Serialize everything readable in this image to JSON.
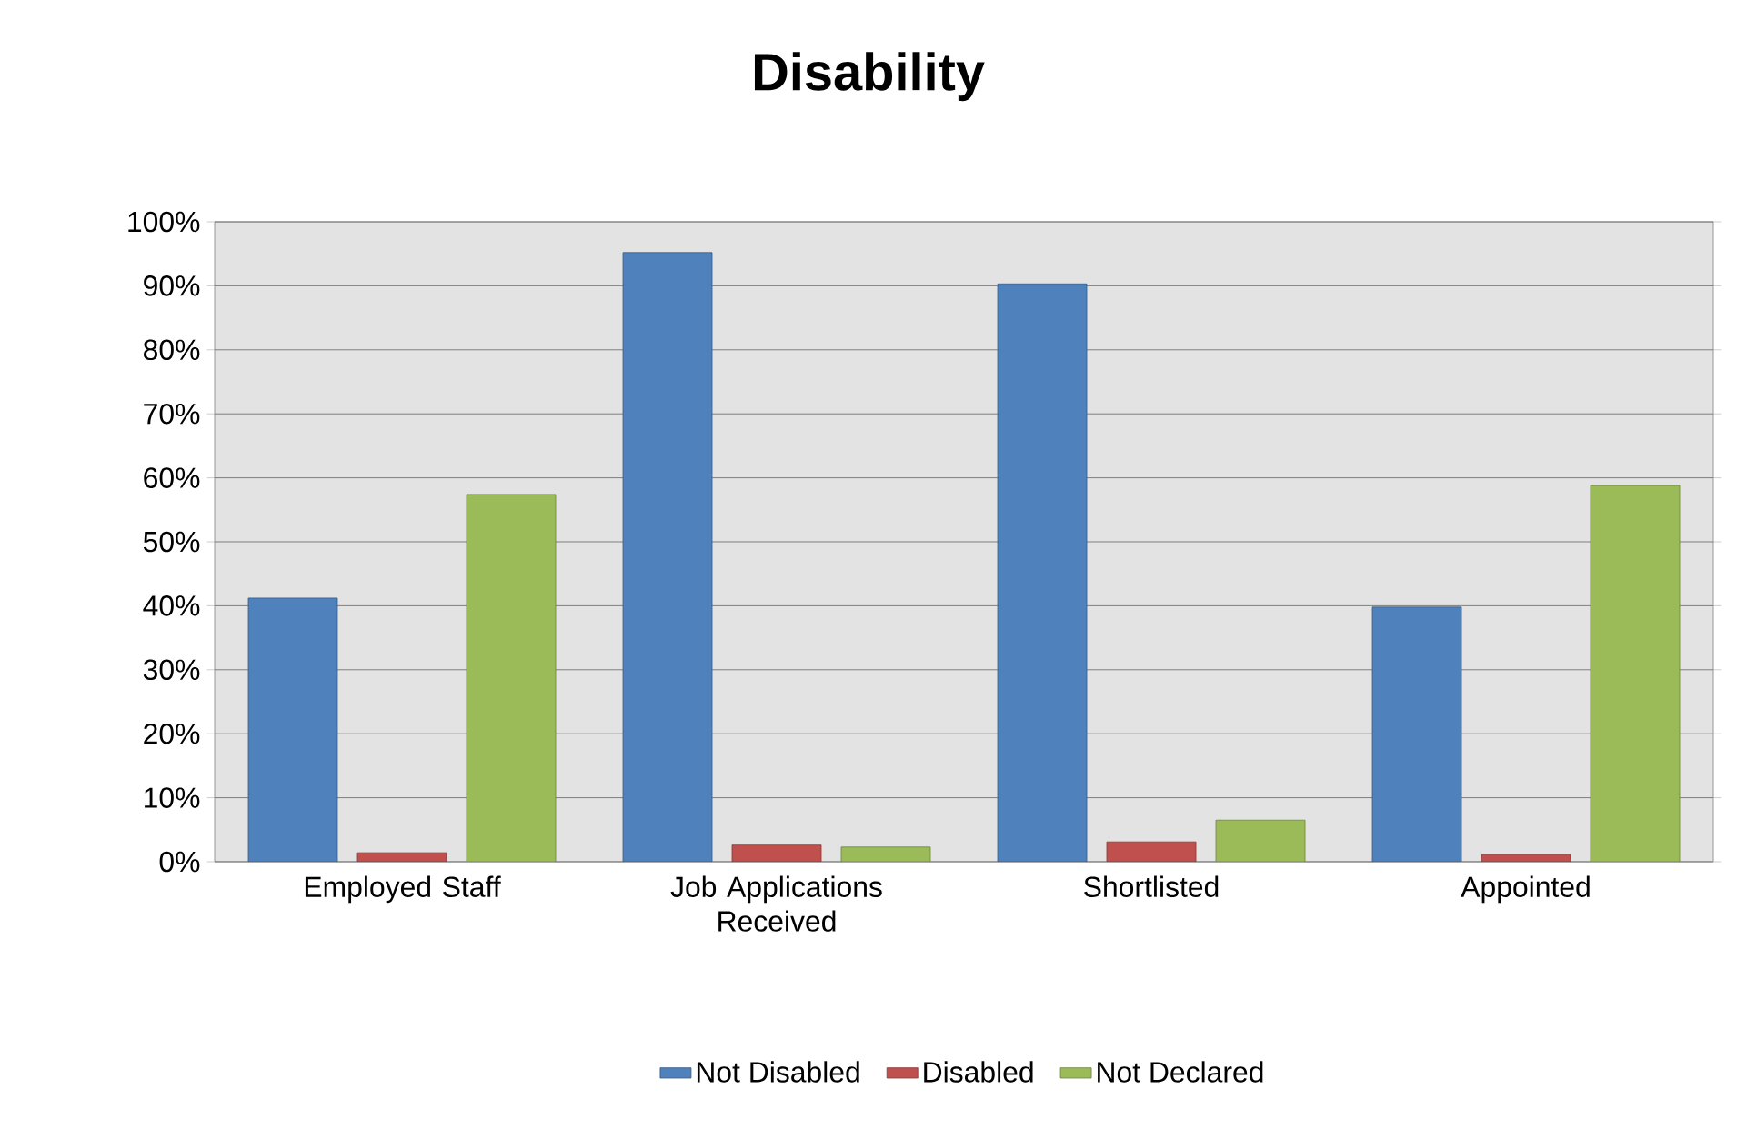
{
  "chart_data": {
    "type": "bar",
    "title": "Disability",
    "categories": [
      "Employed Staff",
      "Job Applications Received",
      "Shortlisted",
      "Appointed"
    ],
    "series": [
      {
        "name": "Not Disabled",
        "color": "#4f81bd",
        "values": [
          41.2,
          95.2,
          90.3,
          39.8
        ]
      },
      {
        "name": "Disabled",
        "color": "#c0504d",
        "values": [
          1.4,
          2.6,
          3.1,
          1.1
        ]
      },
      {
        "name": "Not Declared",
        "color": "#9bbb59",
        "values": [
          57.4,
          2.3,
          6.5,
          58.8
        ]
      }
    ],
    "ylim": [
      0,
      100
    ],
    "yticks": [
      {
        "value": 0,
        "label": "0%"
      },
      {
        "value": 10,
        "label": "10%"
      },
      {
        "value": 20,
        "label": "20%"
      },
      {
        "value": 30,
        "label": "30%"
      },
      {
        "value": 40,
        "label": "40%"
      },
      {
        "value": 50,
        "label": "50%"
      },
      {
        "value": 60,
        "label": "60%"
      },
      {
        "value": 70,
        "label": "70%"
      },
      {
        "value": 80,
        "label": "80%"
      },
      {
        "value": 90,
        "label": "90%"
      },
      {
        "value": 100,
        "label": "100%"
      }
    ],
    "grid": "y",
    "legend": "bottom"
  }
}
